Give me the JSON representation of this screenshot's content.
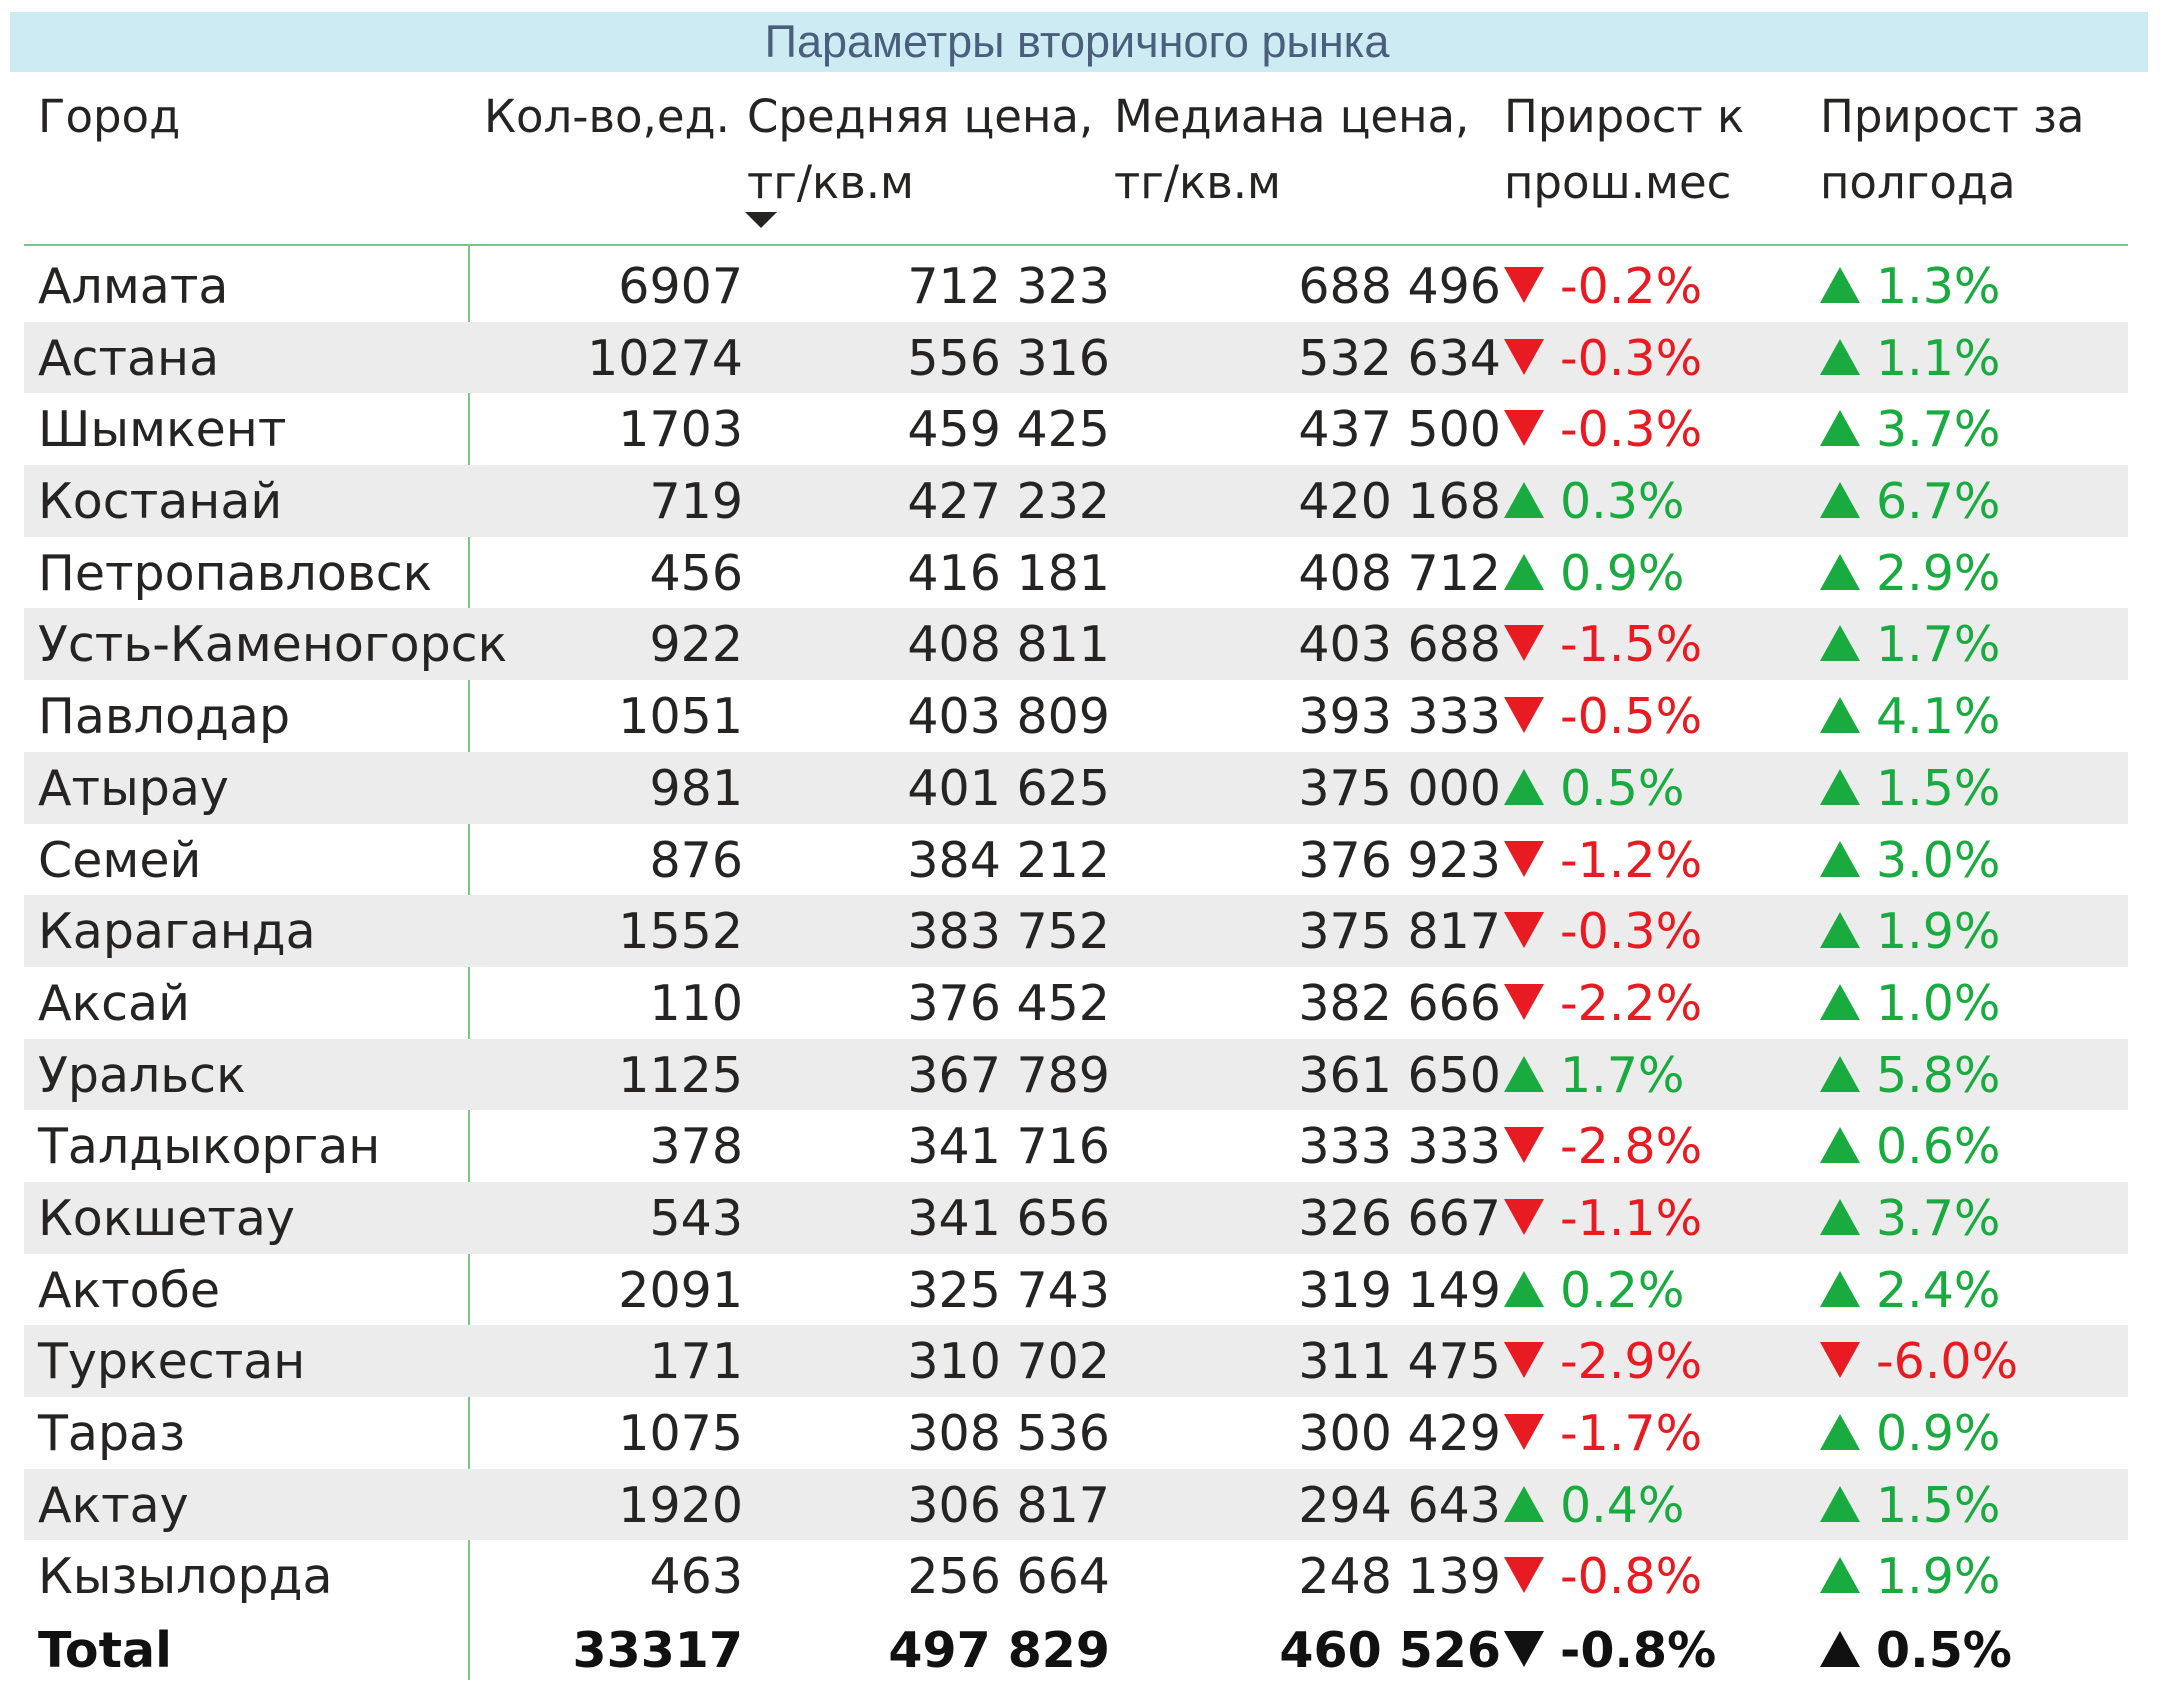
{
  "title": "Параметры вторичного рынка",
  "colors": {
    "title_bg": "#cdebf3",
    "title_text": "#4a5f7c",
    "positive": "#1aab40",
    "negative": "#e81b23",
    "row_alt": "#ececec",
    "divider": "#7cc48e"
  },
  "columns": {
    "city": "Город",
    "qty": "Кол-во,ед.",
    "avg_1": "Средняя цена,",
    "avg_2": "тг/кв.м",
    "median_1": "Медиана цена,",
    "median_2": "тг/кв.м",
    "mom_1": "Прирост к",
    "mom_2": "прош.мес",
    "half_1": "Прирост за",
    "half_2": "полгода"
  },
  "sort": {
    "column": "avg",
    "direction": "descending",
    "icon": "sort-desc-icon"
  },
  "rows": [
    {
      "city": "Алмата",
      "qty": "6907",
      "avg": "712 323",
      "median": "688 496",
      "mom": "-0.2%",
      "mom_dir": "down",
      "half": "1.3%",
      "half_dir": "up"
    },
    {
      "city": "Астана",
      "qty": "10274",
      "avg": "556 316",
      "median": "532 634",
      "mom": "-0.3%",
      "mom_dir": "down",
      "half": "1.1%",
      "half_dir": "up"
    },
    {
      "city": "Шымкент",
      "qty": "1703",
      "avg": "459 425",
      "median": "437 500",
      "mom": "-0.3%",
      "mom_dir": "down",
      "half": "3.7%",
      "half_dir": "up"
    },
    {
      "city": "Костанай",
      "qty": "719",
      "avg": "427 232",
      "median": "420 168",
      "mom": "0.3%",
      "mom_dir": "up",
      "half": "6.7%",
      "half_dir": "up"
    },
    {
      "city": "Петропавловск",
      "qty": "456",
      "avg": "416 181",
      "median": "408 712",
      "mom": "0.9%",
      "mom_dir": "up",
      "half": "2.9%",
      "half_dir": "up"
    },
    {
      "city": "Усть-Каменогорск",
      "qty": "922",
      "avg": "408 811",
      "median": "403 688",
      "mom": "-1.5%",
      "mom_dir": "down",
      "half": "1.7%",
      "half_dir": "up"
    },
    {
      "city": "Павлодар",
      "qty": "1051",
      "avg": "403 809",
      "median": "393 333",
      "mom": "-0.5%",
      "mom_dir": "down",
      "half": "4.1%",
      "half_dir": "up"
    },
    {
      "city": "Атырау",
      "qty": "981",
      "avg": "401 625",
      "median": "375 000",
      "mom": "0.5%",
      "mom_dir": "up",
      "half": "1.5%",
      "half_dir": "up"
    },
    {
      "city": "Семей",
      "qty": "876",
      "avg": "384 212",
      "median": "376 923",
      "mom": "-1.2%",
      "mom_dir": "down",
      "half": "3.0%",
      "half_dir": "up"
    },
    {
      "city": "Караганда",
      "qty": "1552",
      "avg": "383 752",
      "median": "375 817",
      "mom": "-0.3%",
      "mom_dir": "down",
      "half": "1.9%",
      "half_dir": "up"
    },
    {
      "city": "Аксай",
      "qty": "110",
      "avg": "376 452",
      "median": "382 666",
      "mom": "-2.2%",
      "mom_dir": "down",
      "half": "1.0%",
      "half_dir": "up"
    },
    {
      "city": "Уральск",
      "qty": "1125",
      "avg": "367 789",
      "median": "361 650",
      "mom": "1.7%",
      "mom_dir": "up",
      "half": "5.8%",
      "half_dir": "up"
    },
    {
      "city": "Талдыкорган",
      "qty": "378",
      "avg": "341 716",
      "median": "333 333",
      "mom": "-2.8%",
      "mom_dir": "down",
      "half": "0.6%",
      "half_dir": "up"
    },
    {
      "city": "Кокшетау",
      "qty": "543",
      "avg": "341 656",
      "median": "326 667",
      "mom": "-1.1%",
      "mom_dir": "down",
      "half": "3.7%",
      "half_dir": "up"
    },
    {
      "city": "Актобе",
      "qty": "2091",
      "avg": "325 743",
      "median": "319 149",
      "mom": "0.2%",
      "mom_dir": "up",
      "half": "2.4%",
      "half_dir": "up"
    },
    {
      "city": "Туркестан",
      "qty": "171",
      "avg": "310 702",
      "median": "311 475",
      "mom": "-2.9%",
      "mom_dir": "down",
      "half": "-6.0%",
      "half_dir": "down"
    },
    {
      "city": "Тараз",
      "qty": "1075",
      "avg": "308 536",
      "median": "300 429",
      "mom": "-1.7%",
      "mom_dir": "down",
      "half": "0.9%",
      "half_dir": "up"
    },
    {
      "city": "Актау",
      "qty": "1920",
      "avg": "306 817",
      "median": "294 643",
      "mom": "0.4%",
      "mom_dir": "up",
      "half": "1.5%",
      "half_dir": "up"
    },
    {
      "city": "Кызылорда",
      "qty": "463",
      "avg": "256 664",
      "median": "248 139",
      "mom": "-0.8%",
      "mom_dir": "down",
      "half": "1.9%",
      "half_dir": "up"
    }
  ],
  "total": {
    "city": "Total",
    "qty": "33317",
    "avg": "497 829",
    "median": "460 526",
    "mom": "-0.8%",
    "mom_dir": "down",
    "half": "0.5%",
    "half_dir": "up"
  }
}
